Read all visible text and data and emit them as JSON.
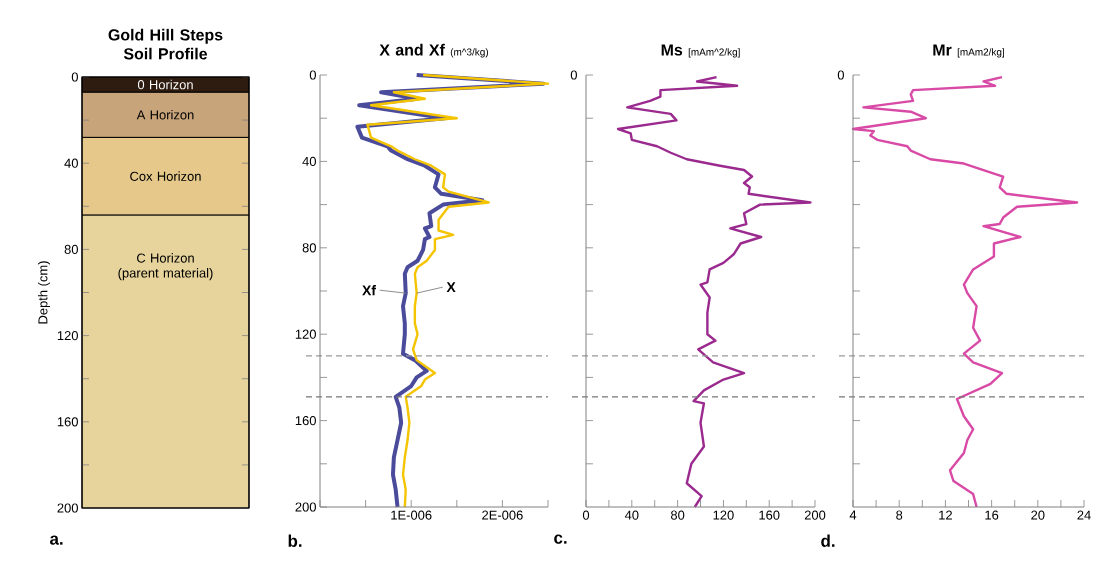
{
  "chart_data": [
    {
      "type": "bar",
      "stacked": true,
      "title": "Gold Hill Steps Soil Profile",
      "ylabel": "Depth (cm)",
      "categories": [
        null
      ],
      "series": [
        {
          "name": "0 Horizon",
          "color": "#2e1c10",
          "values": [
            7
          ]
        },
        {
          "name": "A Horizon",
          "color": "#c8a47a",
          "values": [
            21
          ]
        },
        {
          "name": "Cox Horizon",
          "color": "#e6c98a",
          "values": [
            36
          ]
        },
        {
          "name": "C Horizon (parent material)",
          "color": "#e7d49c",
          "values": [
            136
          ]
        }
      ],
      "ylim": [
        200,
        0
      ],
      "yticks": [
        0,
        {
          "value": 20,
          "label": null
        },
        40,
        {
          "value": 60,
          "label": null
        },
        80,
        {
          "value": 100,
          "label": null
        },
        120,
        {
          "value": 140,
          "label": null
        },
        160,
        {
          "value": 180,
          "label": null
        },
        200
      ],
      "annotations": [
        "a."
      ]
    },
    {
      "type": "line",
      "title": "X and Xf",
      "subtitle": "(m^3/kg)",
      "series": [
        {
          "color": "#4b4b9b",
          "x": [
            1.06e-06,
            2.45e-06,
            6.7e-07,
            1.07e-06,
            4.3e-07,
            1.37e-06,
            4.1e-07,
            4.6e-07,
            7.4e-07,
            7.8e-07,
            9.6e-07,
            1.15e-06,
            1.3e-06,
            1.26e-06,
            1.33e-06,
            1.78e-06,
            1.35e-06,
            1.2e-06,
            1.22e-06,
            1.15e-06,
            1.2e-06,
            1.15e-06,
            1.13e-06,
            1.07e-06,
            9.6e-07,
            9.3e-07,
            9.4e-07,
            9.1e-07,
            9.3e-07,
            9.3e-07,
            9.1e-07,
            1.04e-06,
            1.17e-06,
            1.06e-06,
            1e-06,
            8.3e-07,
            8.7e-07,
            8.9e-07,
            8.5e-07,
            8.1e-07,
            8e-07,
            8.3e-07,
            8.5e-07
          ],
          "values": [
            0,
            4,
            8,
            11,
            14,
            20,
            24,
            29,
            33,
            35,
            39,
            42,
            46,
            52,
            55,
            58,
            60,
            64,
            70,
            71,
            75,
            76,
            81,
            86,
            89,
            92,
            101,
            107,
            115,
            120,
            129,
            132,
            137,
            140,
            144,
            149,
            154,
            161,
            169,
            177,
            185,
            192,
            200
          ]
        },
        {
          "color": "#f5c400",
          "x": [
            1.13e-06,
            2.5e-06,
            8.1e-07,
            1.15e-06,
            5.6e-07,
            1.5e-06,
            5.2e-07,
            5.6e-07,
            7.8e-07,
            8.5e-07,
            1.04e-06,
            1.22e-06,
            1.37e-06,
            1.35e-06,
            1.41e-06,
            1.85e-06,
            1.41e-06,
            1.3e-06,
            1.3e-06,
            1.46e-06,
            1.26e-06,
            1.26e-06,
            1.17e-06,
            1.07e-06,
            1.04e-06,
            1.06e-06,
            1.04e-06,
            1.04e-06,
            1.07e-06,
            1.02e-06,
            1.06e-06,
            1.26e-06,
            1.15e-06,
            1.11e-06,
            9.4e-07,
            9.6e-07,
            9.8e-07,
            9.6e-07,
            9.3e-07,
            9.1e-07,
            9.4e-07,
            9.3e-07
          ],
          "values": [
            0,
            4,
            8,
            11,
            14,
            20,
            23,
            29,
            33,
            35,
            39,
            42,
            46,
            52,
            54,
            59,
            61,
            67,
            72,
            74,
            76,
            81,
            86,
            89,
            92,
            101,
            107,
            115,
            120,
            127,
            132,
            138,
            141,
            144,
            149,
            154,
            161,
            169,
            177,
            185,
            192,
            200
          ]
        }
      ],
      "xlim": [
        0,
        2.5e-06
      ],
      "xticks": [
        {
          "value": 0,
          "label": null
        },
        {
          "value": 5e-07,
          "label": null
        },
        {
          "value": 1e-06,
          "label": "1E-006"
        },
        {
          "value": 1.5e-06,
          "label": null
        },
        {
          "value": 2e-06,
          "label": "2E-006"
        },
        {
          "value": 2.5e-06,
          "label": null
        }
      ],
      "ylim": [
        200,
        0
      ],
      "yticks": [
        0,
        {
          "value": 20,
          "label": null
        },
        40,
        {
          "value": 60,
          "label": null
        },
        80,
        {
          "value": 100,
          "label": null
        },
        120,
        {
          "value": 140,
          "label": null
        },
        160,
        {
          "value": 180,
          "label": null
        },
        200
      ],
      "ref_lines": [
        {
          "axis": "y",
          "value": 130,
          "color": "#999999",
          "line_style": "dashed"
        },
        {
          "axis": "y",
          "value": 149,
          "color": "#777777",
          "line_style": "dashed"
        }
      ],
      "annotations": [
        {
          "text": "Xf",
          "x": 9.4e-07,
          "y": 101
        },
        {
          "text": "X",
          "x": 1.06e-06,
          "y": 101
        },
        "b."
      ]
    },
    {
      "type": "line",
      "title": "Ms",
      "subtitle": "[mAm^2/kg]",
      "series": [
        {
          "color": "#9b2a8f",
          "x": [
            114,
            97,
            132,
            65,
            65,
            56,
            36,
            74,
            79,
            28,
            39,
            40,
            62,
            74,
            88,
            117,
            138,
            145,
            138,
            143,
            142,
            196,
            152,
            138,
            140,
            126,
            153,
            135,
            129,
            120,
            108,
            106,
            100,
            108,
            106,
            106,
            113,
            98,
            111,
            138,
            120,
            103,
            94,
            103,
            100,
            103,
            92,
            88,
            101,
            95
          ],
          "values": [
            1,
            3,
            5,
            7,
            10,
            12,
            15,
            18,
            21,
            25,
            27,
            30,
            33,
            36,
            39,
            42,
            44,
            47,
            50,
            52,
            55,
            59,
            60,
            64,
            69,
            71,
            75,
            78,
            83,
            87,
            90,
            96,
            97,
            103,
            110,
            120,
            123,
            127,
            133,
            138,
            141,
            146,
            151,
            152,
            161,
            172,
            180,
            189,
            195,
            200
          ]
        }
      ],
      "xlim": [
        0,
        200
      ],
      "xticks": [
        0,
        {
          "value": 20,
          "label": null
        },
        40,
        {
          "value": 60,
          "label": null
        },
        80,
        {
          "value": 100,
          "label": null
        },
        120,
        {
          "value": 140,
          "label": null
        },
        160,
        {
          "value": 180,
          "label": null
        },
        200
      ],
      "ylim": [
        200,
        0
      ],
      "yticks": [
        0,
        20,
        40,
        60,
        80,
        100,
        120,
        140,
        160,
        180
      ],
      "tick_labels": "x",
      "ref_lines": [
        {
          "axis": "y",
          "value": 130,
          "color": "#999999",
          "line_style": "dashed"
        },
        {
          "axis": "y",
          "value": 149,
          "color": "#777777",
          "line_style": "dashed"
        }
      ],
      "annotations": [
        "0",
        "c."
      ]
    },
    {
      "type": "line",
      "title": "Mr",
      "subtitle": "[mAm2/kg]",
      "series": [
        {
          "color": "#d84aa5",
          "x": [
            16.9,
            15.3,
            16.3,
            9.2,
            9.0,
            9.2,
            4.9,
            9.0,
            10.3,
            4.0,
            5.8,
            5.5,
            6.1,
            8.7,
            9.0,
            10.7,
            13.6,
            16.4,
            17.0,
            16.7,
            17.3,
            23.4,
            18.2,
            17.0,
            16.7,
            15.3,
            18.5,
            16.2,
            16.2,
            14.4,
            13.6,
            13.9,
            14.7,
            14.4,
            15.0,
            13.6,
            14.4,
            16.9,
            15.9,
            13.0,
            13.6,
            14.4,
            13.9,
            13.6,
            12.4,
            12.7,
            14.4,
            14.7
          ],
          "values": [
            1,
            3,
            5,
            7,
            9,
            12,
            15,
            17,
            20,
            25,
            26,
            28,
            30,
            33,
            35,
            39,
            41,
            46,
            47,
            52,
            55,
            59,
            61,
            66,
            69,
            70,
            75,
            78,
            84,
            90,
            97,
            101,
            107,
            117,
            123,
            129,
            133,
            138,
            143,
            150,
            158,
            164,
            169,
            175,
            183,
            188,
            194,
            200
          ]
        }
      ],
      "xlim": [
        4,
        24
      ],
      "xticks": [
        4,
        {
          "value": 6,
          "label": null
        },
        8,
        {
          "value": 10,
          "label": null
        },
        12,
        {
          "value": 14,
          "label": null
        },
        16,
        {
          "value": 18,
          "label": null
        },
        20,
        {
          "value": 22,
          "label": null
        },
        24
      ],
      "ylim": [
        200,
        0
      ],
      "yticks": [
        0,
        20,
        40,
        60,
        80,
        100,
        120,
        140,
        160,
        180
      ],
      "tick_labels": "x",
      "ref_lines": [
        {
          "axis": "y",
          "value": 130,
          "color": "#999999",
          "line_style": "dashed"
        },
        {
          "axis": "y",
          "value": 149,
          "color": "#777777",
          "line_style": "dashed"
        }
      ],
      "annotations": [
        "0",
        "d."
      ]
    }
  ]
}
